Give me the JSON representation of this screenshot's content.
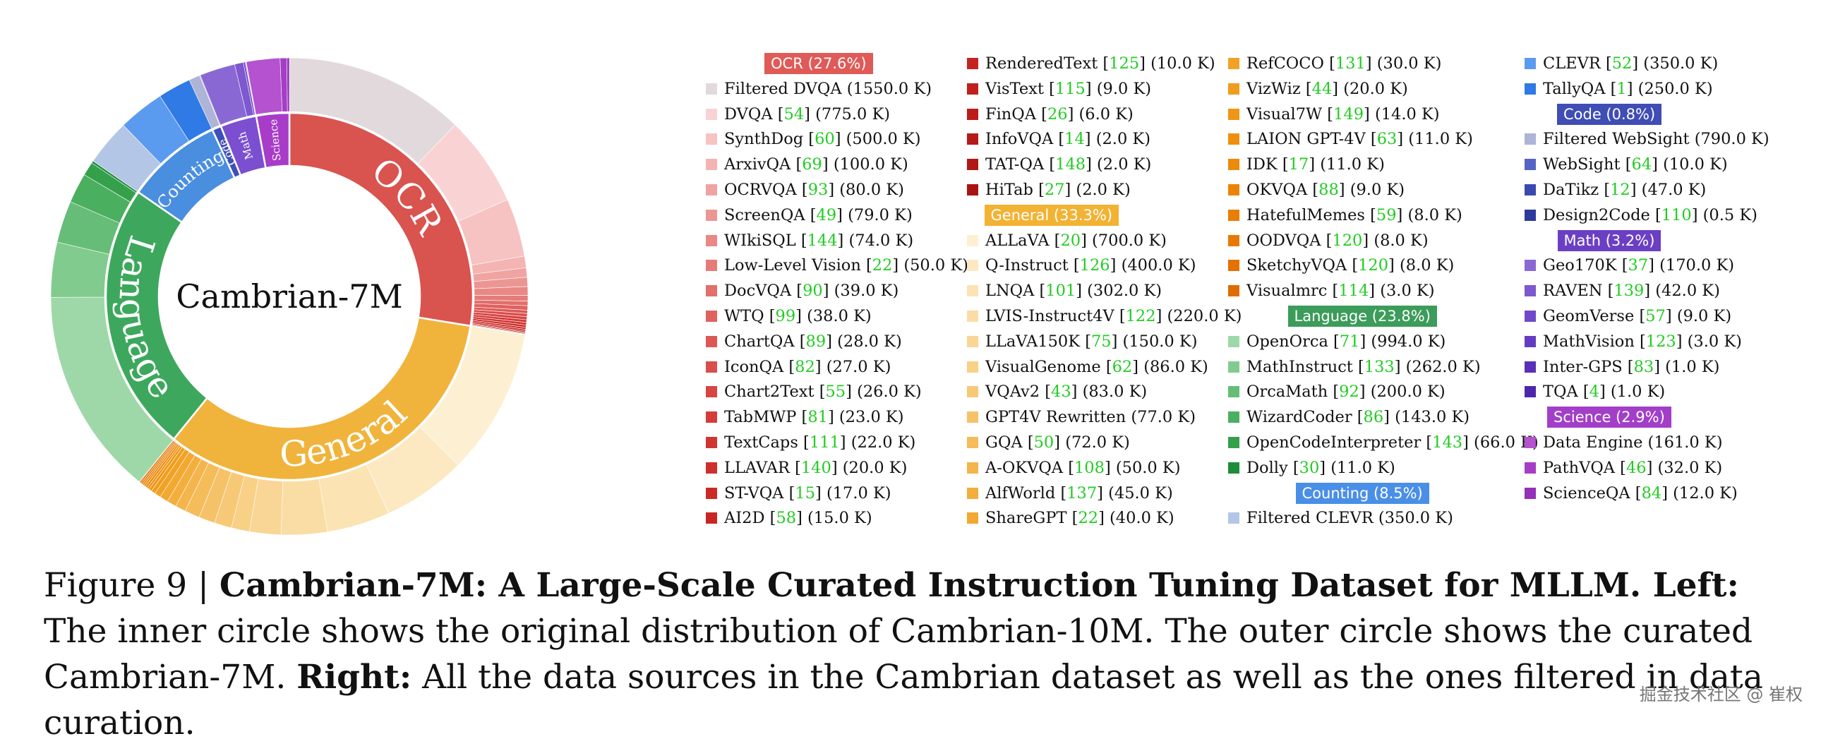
{
  "chart_data": {
    "type": "sunburst",
    "center_label": "Cambrian-7M",
    "inner_ring": [
      {
        "category": "OCR",
        "percent": 27.6,
        "color": "#d9534f"
      },
      {
        "category": "General",
        "percent": 33.3,
        "color": "#f0b43c"
      },
      {
        "category": "Language",
        "percent": 23.8,
        "color": "#3da85d"
      },
      {
        "category": "Counting",
        "percent": 8.5,
        "color": "#4a8ee0"
      },
      {
        "category": "Code",
        "percent": 0.8,
        "color": "#3f4fb8"
      },
      {
        "category": "Math",
        "percent": 3.2,
        "color": "#7b4fd0"
      },
      {
        "category": "Science",
        "percent": 2.9,
        "color": "#a83cc9"
      }
    ],
    "ring_labels": [
      "OCR",
      "General",
      "Language",
      "Counting",
      "Code",
      "Math",
      "Science"
    ]
  },
  "legend": {
    "groups": [
      {
        "header": "OCR (27.6%)",
        "color": "#e05a57",
        "items": [
          {
            "name": "Filtered DVQA",
            "size": "(1550.0 K)",
            "color": "#e2d9dc"
          },
          {
            "name": "DVQA",
            "ref": "54",
            "size": "(775.0 K)",
            "color": "#f9d3d3"
          },
          {
            "name": "SynthDog",
            "ref": "60",
            "size": "(500.0 K)",
            "color": "#f6c3c2"
          },
          {
            "name": "ArxivQA",
            "ref": "69",
            "size": "(100.0 K)",
            "color": "#f3b4b2"
          },
          {
            "name": "OCRVQA",
            "ref": "93",
            "size": "(80.0 K)",
            "color": "#efa4a2"
          },
          {
            "name": "ScreenQA",
            "ref": "49",
            "size": "(79.0 K)",
            "color": "#ec9693"
          },
          {
            "name": "WIkiSQL",
            "ref": "144",
            "size": "(74.0 K)",
            "color": "#e98885"
          },
          {
            "name": "Low-Level Vision",
            "ref": "22",
            "size": "(50.0 K)",
            "color": "#e67b78"
          },
          {
            "name": "DocVQA",
            "ref": "90",
            "size": "(39.0 K)",
            "color": "#e36e6b"
          },
          {
            "name": "WTQ",
            "ref": "99",
            "size": "(38.0 K)",
            "color": "#e0625f"
          },
          {
            "name": "ChartQA",
            "ref": "89",
            "size": "(28.0 K)",
            "color": "#dd5855"
          },
          {
            "name": "IconQA",
            "ref": "82",
            "size": "(27.0 K)",
            "color": "#da4e4b"
          },
          {
            "name": "Chart2Text",
            "ref": "55",
            "size": "(26.0 K)",
            "color": "#d74542"
          },
          {
            "name": "TabMWP",
            "ref": "81",
            "size": "(23.0 K)",
            "color": "#d43c39"
          },
          {
            "name": "TextCaps",
            "ref": "111",
            "size": "(22.0 K)",
            "color": "#d13532"
          },
          {
            "name": "LLAVAR",
            "ref": "140",
            "size": "(20.0 K)",
            "color": "#ce2f2c"
          },
          {
            "name": "ST-VQA",
            "ref": "15",
            "size": "(17.0 K)",
            "color": "#cb2a27"
          },
          {
            "name": "AI2D",
            "ref": "58",
            "size": "(15.0 K)",
            "color": "#c82623"
          },
          {
            "name": "RenderedText",
            "ref": "125",
            "size": "(10.0 K)",
            "color": "#c42320"
          },
          {
            "name": "VisText",
            "ref": "115",
            "size": "(9.0 K)",
            "color": "#c0201d"
          },
          {
            "name": "FinQA",
            "ref": "26",
            "size": "(6.0 K)",
            "color": "#bb1d1a"
          },
          {
            "name": "InfoVQA",
            "ref": "14",
            "size": "(2.0 K)",
            "color": "#b61a18"
          },
          {
            "name": "TAT-QA",
            "ref": "148",
            "size": "(2.0 K)",
            "color": "#b01715"
          },
          {
            "name": "HiTab",
            "ref": "27",
            "size": "(2.0 K)",
            "color": "#a81412"
          }
        ]
      },
      {
        "header": "General (33.3%)",
        "color": "#f2b233",
        "items": [
          {
            "name": "ALLaVA",
            "ref": "20",
            "size": "(700.0 K)",
            "color": "#fdf0d2"
          },
          {
            "name": "Q-Instruct",
            "ref": "126",
            "size": "(400.0 K)",
            "color": "#fce9c2"
          },
          {
            "name": "LNQA",
            "ref": "101",
            "size": "(302.0 K)",
            "color": "#fbe3b3"
          },
          {
            "name": "LVIS-Instruct4V",
            "ref": "122",
            "size": "(220.0 K)",
            "color": "#fadda4"
          },
          {
            "name": "LLaVA150K",
            "ref": "75",
            "size": "(150.0 K)",
            "color": "#f9d695"
          },
          {
            "name": "VisualGenome",
            "ref": "62",
            "size": "(86.0 K)",
            "color": "#f8d086"
          },
          {
            "name": "VQAv2",
            "ref": "43",
            "size": "(83.0 K)",
            "color": "#f7c977"
          },
          {
            "name": "GPT4V Rewritten",
            "size": "(77.0 K)",
            "color": "#f6c268"
          },
          {
            "name": "GQA",
            "ref": "50",
            "size": "(72.0 K)",
            "color": "#f5bc5a"
          },
          {
            "name": "A-OKVQA",
            "ref": "108",
            "size": "(50.0 K)",
            "color": "#f4b54c"
          },
          {
            "name": "AlfWorld",
            "ref": "137",
            "size": "(45.0 K)",
            "color": "#f3ae3e"
          },
          {
            "name": "ShareGPT",
            "ref": "22",
            "size": "(40.0 K)",
            "color": "#f2a831"
          },
          {
            "name": "RefCOCO",
            "ref": "131",
            "size": "(30.0 K)",
            "color": "#f1a225"
          },
          {
            "name": "VizWiz",
            "ref": "44",
            "size": "(20.0 K)",
            "color": "#f09c1c"
          },
          {
            "name": "Visual7W",
            "ref": "149",
            "size": "(14.0 K)",
            "color": "#ef9614"
          },
          {
            "name": "LAION GPT-4V",
            "ref": "63",
            "size": "(11.0 K)",
            "color": "#ee900e"
          },
          {
            "name": "IDK",
            "ref": "17",
            "size": "(11.0 K)",
            "color": "#ec8a0a"
          },
          {
            "name": "OKVQA",
            "ref": "88",
            "size": "(9.0 K)",
            "color": "#ea8407"
          },
          {
            "name": "HatefulMemes",
            "ref": "59",
            "size": "(8.0 K)",
            "color": "#e87e05"
          },
          {
            "name": "OODVQA",
            "ref": "120",
            "size": "(8.0 K)",
            "color": "#e67803"
          },
          {
            "name": "SketchyVQA",
            "ref": "120",
            "size": "(8.0 K)",
            "color": "#e37202"
          },
          {
            "name": "Visualmrc",
            "ref": "114",
            "size": "(3.0 K)",
            "color": "#e06c01"
          }
        ]
      },
      {
        "header": "Language (23.8%)",
        "color": "#3c9c5a",
        "items": [
          {
            "name": "OpenOrca",
            "ref": "71",
            "size": "(994.0 K)",
            "color": "#9fd8a8"
          },
          {
            "name": "MathInstruct",
            "ref": "133",
            "size": "(262.0 K)",
            "color": "#82cb8f"
          },
          {
            "name": "OrcaMath",
            "ref": "92",
            "size": "(200.0 K)",
            "color": "#66bd77"
          },
          {
            "name": "WizardCoder",
            "ref": "86",
            "size": "(143.0 K)",
            "color": "#4baf60"
          },
          {
            "name": "OpenCodeInterpreter",
            "ref": "143",
            "size": "(66.0 K)",
            "color": "#34a04c"
          },
          {
            "name": "Dolly",
            "ref": "30",
            "size": "(11.0 K)",
            "color": "#1f8c3a"
          }
        ]
      },
      {
        "header": "Counting (8.5%)",
        "color": "#4a8fe7",
        "items": [
          {
            "name": "Filtered CLEVR",
            "size": "(350.0 K)",
            "color": "#b3c6e6"
          },
          {
            "name": "CLEVR",
            "ref": "52",
            "size": "(350.0 K)",
            "color": "#5b9bef"
          },
          {
            "name": "TallyQA",
            "ref": "1",
            "size": "(250.0 K)",
            "color": "#2f7ae5"
          }
        ]
      },
      {
        "header": "Code (0.8%)",
        "color": "#3f4db5",
        "items": [
          {
            "name": "Filtered WebSight",
            "size": "(790.0 K)",
            "color": "#aeb3d8"
          },
          {
            "name": "WebSight",
            "ref": "64",
            "size": "(10.0 K)",
            "color": "#5563c4"
          },
          {
            "name": "DaTikz",
            "ref": "12",
            "size": "(47.0 K)",
            "color": "#3a49b0"
          },
          {
            "name": "Design2Code",
            "ref": "110",
            "size": "(0.5 K)",
            "color": "#2c3a9c"
          }
        ]
      },
      {
        "header": "Math (3.2%)",
        "color": "#6b3fc4",
        "items": [
          {
            "name": "Geo170K",
            "ref": "37",
            "size": "(170.0 K)",
            "color": "#8a68d4"
          },
          {
            "name": "RAVEN",
            "ref": "139",
            "size": "(42.0 K)",
            "color": "#7d58cf"
          },
          {
            "name": "GeomVerse",
            "ref": "57",
            "size": "(9.0 K)",
            "color": "#7049c9"
          },
          {
            "name": "MathVision",
            "ref": "123",
            "size": "(3.0 K)",
            "color": "#643cc2"
          },
          {
            "name": "Inter-GPS",
            "ref": "83",
            "size": "(1.0 K)",
            "color": "#5930b8"
          },
          {
            "name": "TQA",
            "ref": "4",
            "size": "(1.0 K)",
            "color": "#4e26ac"
          }
        ]
      },
      {
        "header": "Science (2.9%)",
        "color": "#a33ec9",
        "items": [
          {
            "name": "Data Engine",
            "size": "(161.0 K)",
            "color": "#b552d0"
          },
          {
            "name": "PathVQA",
            "ref": "46",
            "size": "(32.0 K)",
            "color": "#a63dc6"
          },
          {
            "name": "ScienceQA",
            "ref": "84",
            "size": "(12.0 K)",
            "color": "#9530b8"
          }
        ]
      }
    ]
  },
  "caption": {
    "prefix": "Figure 9 | ",
    "bold_title": "Cambrian-7M: A Large-Scale Curated Instruction Tuning Dataset for MLLM. Left:",
    "text1": " The inner circle shows the original distribution of Cambrian-10M. The outer circle shows the curated Cambrian-7M. ",
    "bold_right": "Right:",
    "text2": " All the data sources in the Cambrian dataset as well as the ones filtered in data curation."
  },
  "watermark": "掘金技术社区 @ 崔权"
}
